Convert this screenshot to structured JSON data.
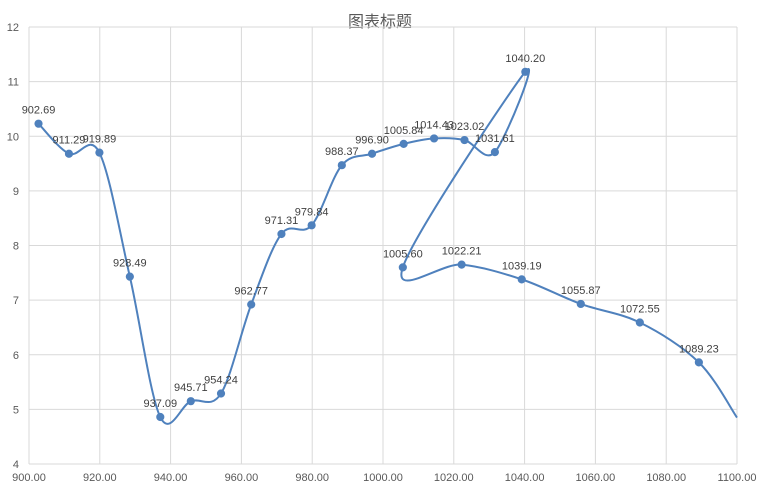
{
  "chart_data": {
    "type": "scatter",
    "title": "图表标题",
    "xlabel": "",
    "ylabel": "",
    "xlim": [
      900,
      1100
    ],
    "ylim": [
      4,
      12
    ],
    "x_ticks": [
      "900.00",
      "920.00",
      "940.00",
      "960.00",
      "980.00",
      "1000.00",
      "1020.00",
      "1040.00",
      "1060.00",
      "1080.00",
      "1100.00"
    ],
    "y_ticks": [
      "4",
      "5",
      "6",
      "7",
      "8",
      "9",
      "10",
      "11",
      "12"
    ],
    "grid": true,
    "line_style": "smoothed",
    "series_color": "#4f81bd",
    "series": [
      {
        "points": [
          {
            "x": 902.69,
            "y": 10.23,
            "label": "902.69"
          },
          {
            "x": 911.29,
            "y": 9.68,
            "label": "911.29"
          },
          {
            "x": 919.89,
            "y": 9.7,
            "label": "919.89"
          },
          {
            "x": 928.49,
            "y": 7.43,
            "label": "928.49"
          },
          {
            "x": 937.09,
            "y": 4.86,
            "label": "937.09"
          },
          {
            "x": 945.71,
            "y": 5.15,
            "label": "945.71"
          },
          {
            "x": 954.24,
            "y": 5.29,
            "label": "954.24"
          },
          {
            "x": 962.77,
            "y": 6.92,
            "label": "962.77"
          },
          {
            "x": 971.31,
            "y": 8.21,
            "label": "971.31"
          },
          {
            "x": 979.84,
            "y": 8.37,
            "label": "979.84"
          },
          {
            "x": 988.37,
            "y": 9.47,
            "label": "988.37"
          },
          {
            "x": 996.9,
            "y": 9.68,
            "label": "996.90"
          },
          {
            "x": 1005.84,
            "y": 9.86,
            "label": "1005.84"
          },
          {
            "x": 1014.43,
            "y": 9.96,
            "label": "1014.43"
          },
          {
            "x": 1023.02,
            "y": 9.93,
            "label": "1023.02"
          },
          {
            "x": 1031.61,
            "y": 9.71,
            "label": "1031.61"
          },
          {
            "x": 1040.2,
            "y": 11.18,
            "label": "1040.20"
          },
          {
            "x": 1005.6,
            "y": 7.6,
            "label": "1005.60"
          },
          {
            "x": 1022.21,
            "y": 7.65,
            "label": "1022.21"
          },
          {
            "x": 1039.19,
            "y": 7.38,
            "label": "1039.19"
          },
          {
            "x": 1055.87,
            "y": 6.93,
            "label": "1055.87"
          },
          {
            "x": 1072.55,
            "y": 6.59,
            "label": "1072.55"
          },
          {
            "x": 1089.23,
            "y": 5.86,
            "label": "1089.23"
          },
          {
            "x": 1100.0,
            "y": 4.85,
            "label": ""
          }
        ]
      }
    ]
  }
}
